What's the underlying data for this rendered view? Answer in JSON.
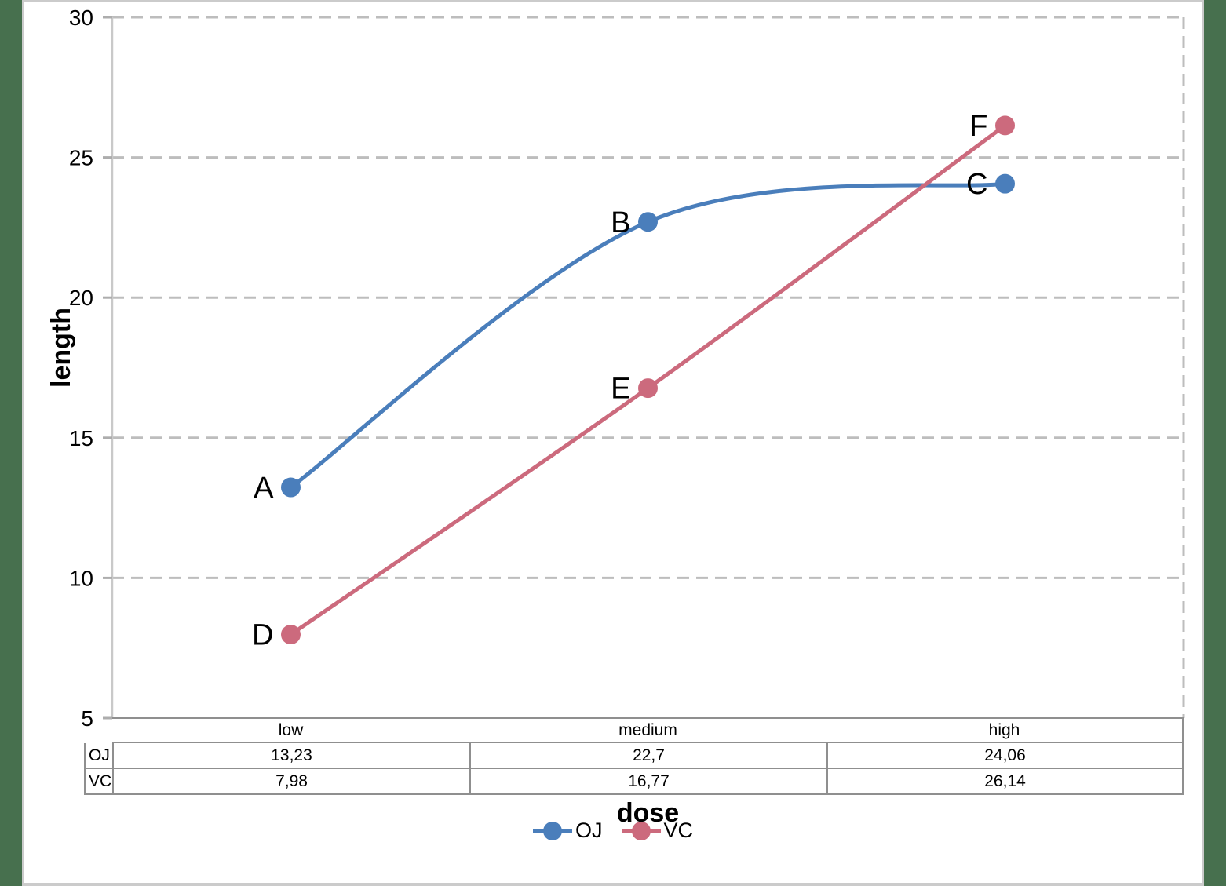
{
  "page": {
    "background_color": "#47704e",
    "page_color": "#ffffff",
    "border_color": "#cbcbcb"
  },
  "chart_data": {
    "type": "line",
    "line_style": "smooth",
    "xlabel": "dose",
    "ylabel": "length",
    "categories": [
      "low",
      "medium",
      "high"
    ],
    "series": [
      {
        "name": "OJ",
        "color": "#4a7ebb",
        "values": [
          13.23,
          22.7,
          24.06
        ],
        "point_labels": [
          "A",
          "B",
          "C"
        ]
      },
      {
        "name": "VC",
        "color": "#cc6a7d",
        "values": [
          7.98,
          16.77,
          26.14
        ],
        "point_labels": [
          "D",
          "E",
          "F"
        ]
      }
    ],
    "ylim": [
      5,
      30
    ],
    "yticks": [
      5,
      10,
      15,
      20,
      25,
      30
    ],
    "grid": "horizontal-dashed",
    "gridline_color": "#bdbdbd",
    "legend_position": "bottom",
    "data_table": {
      "column_headers": [
        "low",
        "medium",
        "high"
      ],
      "rows": [
        {
          "label": "OJ",
          "values": [
            "13,23",
            "22,7",
            "24,06"
          ]
        },
        {
          "label": "VC",
          "values": [
            "7,98",
            "16,77",
            "26,14"
          ]
        }
      ]
    }
  }
}
